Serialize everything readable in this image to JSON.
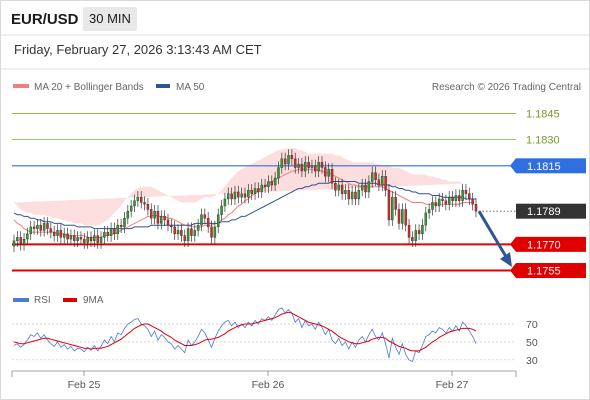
{
  "header": {
    "pair": "EUR/USD",
    "timeframe": "30 MIN",
    "timestamp": "Friday, February 27, 2026 3:13:43 AM CET"
  },
  "legend": {
    "ma20_label": "MA 20 + Bollinger Bands",
    "ma50_label": "MA 50",
    "credit": "Research © 2026 Trading Central"
  },
  "rsi_legend": {
    "rsi_label": "RSI",
    "ma9_label": "9MA"
  },
  "colors": {
    "ma20": "#f08080",
    "ma50": "#2f5597",
    "band": "#fcdede",
    "up": "#2e9d2e",
    "down": "#d42b2b",
    "resistance": "#2f6fe0",
    "support": "#e00000",
    "target": "#7db030",
    "current": "#333333",
    "rsi": "#4f78d8",
    "rsi_ma": "#e00000"
  },
  "chart_data": [
    {
      "type": "candlestick",
      "title": "EUR/USD",
      "ylim": [
        1.1749,
        1.1855
      ],
      "x_ticks": [
        "Feb 25",
        "Feb 26",
        "Feb 27"
      ],
      "levels": [
        {
          "label": "1.1845",
          "value": 1.1845,
          "kind": "target"
        },
        {
          "label": "1.1830",
          "value": 1.183,
          "kind": "target"
        },
        {
          "label": "1.1815",
          "value": 1.1815,
          "kind": "resistance"
        },
        {
          "label": "1.1789",
          "value": 1.1789,
          "kind": "current"
        },
        {
          "label": "1.1770",
          "value": 1.177,
          "kind": "support"
        },
        {
          "label": "1.1755",
          "value": 1.1755,
          "kind": "support"
        }
      ],
      "forecast_arrow": {
        "from": 1.1789,
        "to": 1.1757,
        "direction": "down"
      },
      "closes": [
        1.1772,
        1.1774,
        1.177,
        1.1773,
        1.1776,
        1.178,
        1.1779,
        1.1781,
        1.1778,
        1.1782,
        1.1779,
        1.1777,
        1.1775,
        1.1778,
        1.1774,
        1.1776,
        1.1773,
        1.1775,
        1.1772,
        1.1774,
        1.1773,
        1.1771,
        1.1774,
        1.1772,
        1.1775,
        1.1771,
        1.1774,
        1.1777,
        1.1775,
        1.1779,
        1.1776,
        1.1781,
        1.178,
        1.1785,
        1.1789,
        1.1792,
        1.1795,
        1.1797,
        1.1794,
        1.1793,
        1.179,
        1.1785,
        1.1789,
        1.1782,
        1.1786,
        1.1784,
        1.1781,
        1.178,
        1.1776,
        1.1778,
        1.1775,
        1.1772,
        1.1779,
        1.1775,
        1.1778,
        1.1781,
        1.1787,
        1.1785,
        1.178,
        1.1774,
        1.178,
        1.1787,
        1.1792,
        1.1796,
        1.1799,
        1.1796,
        1.18,
        1.1797,
        1.1799,
        1.1797,
        1.1801,
        1.1799,
        1.1802,
        1.18,
        1.1804,
        1.1803,
        1.1806,
        1.1804,
        1.1808,
        1.1814,
        1.1819,
        1.1816,
        1.1821,
        1.1819,
        1.1814,
        1.1816,
        1.1812,
        1.1817,
        1.1814,
        1.1815,
        1.1812,
        1.1817,
        1.1814,
        1.1809,
        1.1813,
        1.1805,
        1.1801,
        1.1804,
        1.1799,
        1.1801,
        1.1796,
        1.18,
        1.1796,
        1.1801,
        1.1804,
        1.18,
        1.1806,
        1.1811,
        1.1807,
        1.1804,
        1.1809,
        1.1801,
        1.1784,
        1.1797,
        1.179,
        1.1782,
        1.179,
        1.1781,
        1.1774,
        1.1772,
        1.1778,
        1.1776,
        1.1781,
        1.1788,
        1.179,
        1.1794,
        1.1792,
        1.1796,
        1.1795,
        1.1793,
        1.1797,
        1.1795,
        1.1798,
        1.1795,
        1.1801,
        1.1799,
        1.1796,
        1.1793,
        1.1789
      ],
      "ma20": [
        1.1784,
        1.1782,
        1.1781,
        1.1779,
        1.1778,
        1.1777,
        1.1777,
        1.1777,
        1.1777,
        1.1777,
        1.1777,
        1.1777,
        1.1777,
        1.1776,
        1.1776,
        1.1776,
        1.1775,
        1.1775,
        1.1775,
        1.1775,
        1.1775,
        1.1775,
        1.1774,
        1.1774,
        1.1774,
        1.1774,
        1.1774,
        1.1775,
        1.1775,
        1.1776,
        1.1776,
        1.1777,
        1.1778,
        1.1779,
        1.178,
        1.1781,
        1.1782,
        1.1783,
        1.1784,
        1.1785,
        1.1786,
        1.1786,
        1.1787,
        1.1786,
        1.1786,
        1.1786,
        1.1785,
        1.1785,
        1.1784,
        1.1783,
        1.1782,
        1.1781,
        1.1781,
        1.178,
        1.178,
        1.178,
        1.178,
        1.1781,
        1.1781,
        1.1781,
        1.1782,
        1.1782,
        1.1784,
        1.1785,
        1.1787,
        1.1788,
        1.179,
        1.1792,
        1.1793,
        1.1795,
        1.1796,
        1.1798,
        1.1799,
        1.1801,
        1.1802,
        1.1803,
        1.1805,
        1.1806,
        1.1807,
        1.1808,
        1.1809,
        1.181,
        1.1811,
        1.1812,
        1.1812,
        1.1813,
        1.1813,
        1.1813,
        1.1813,
        1.1813,
        1.1813,
        1.1812,
        1.1812,
        1.1811,
        1.1811,
        1.181,
        1.1809,
        1.1808,
        1.1807,
        1.1806,
        1.1805,
        1.1804,
        1.1804,
        1.1803,
        1.1803,
        1.1803,
        1.1803,
        1.1803,
        1.1803,
        1.1803,
        1.1803,
        1.1802,
        1.1801,
        1.18,
        1.1799,
        1.1798,
        1.1797,
        1.1796,
        1.1795,
        1.1794,
        1.1794,
        1.1794,
        1.1794,
        1.1793,
        1.1793,
        1.1793,
        1.1793,
        1.1793,
        1.1793,
        1.1793,
        1.1793,
        1.1793,
        1.1793,
        1.1793,
        1.1794,
        1.1794,
        1.1794,
        1.1794
      ],
      "bb_upper": [
        1.1794,
        1.1792,
        1.179,
        1.1789,
        1.1788,
        1.1788,
        1.1787,
        1.1787,
        1.1787,
        1.1787,
        1.1786,
        1.1786,
        1.1785,
        1.1785,
        1.1784,
        1.1784,
        1.1783,
        1.1783,
        1.1782,
        1.1782,
        1.1782,
        1.1781,
        1.1781,
        1.1781,
        1.1781,
        1.1781,
        1.1782,
        1.1783,
        1.1784,
        1.1786,
        1.1788,
        1.179,
        1.1792,
        1.1795,
        1.1797,
        1.1799,
        1.1801,
        1.1802,
        1.1803,
        1.1803,
        1.1803,
        1.1803,
        1.1802,
        1.1801,
        1.18,
        1.1799,
        1.1798,
        1.1797,
        1.1796,
        1.1795,
        1.1794,
        1.1794,
        1.1794,
        1.1794,
        1.1794,
        1.1795,
        1.1796,
        1.1797,
        1.1797,
        1.1797,
        1.1798,
        1.1799,
        1.1801,
        1.1803,
        1.1806,
        1.1808,
        1.181,
        1.1812,
        1.1813,
        1.1814,
        1.1815,
        1.1816,
        1.1817,
        1.1818,
        1.1819,
        1.182,
        1.1821,
        1.1822,
        1.1823,
        1.1824,
        1.1824,
        1.1825,
        1.1825,
        1.1825,
        1.1825,
        1.1824,
        1.1824,
        1.1823,
        1.1822,
        1.1822,
        1.1822,
        1.1822,
        1.1822,
        1.1822,
        1.1822,
        1.1822,
        1.1821,
        1.1821,
        1.182,
        1.1819,
        1.1818,
        1.1817,
        1.1817,
        1.1817,
        1.1817,
        1.1817,
        1.1817,
        1.1817,
        1.1816,
        1.1816,
        1.1815,
        1.1815,
        1.1815,
        1.1814,
        1.1814,
        1.1814,
        1.1813,
        1.1812,
        1.1811,
        1.181,
        1.181,
        1.181,
        1.181,
        1.181,
        1.1809,
        1.1809,
        1.1808,
        1.1808,
        1.1807,
        1.1807,
        1.1806,
        1.1806,
        1.1806,
        1.1806,
        1.1805,
        1.1805,
        1.1805
      ],
      "bb_lower": [
        1.1774,
        1.1772,
        1.1771,
        1.177,
        1.1769,
        1.1768,
        1.1768,
        1.1768,
        1.1768,
        1.1768,
        1.1768,
        1.1768,
        1.1768,
        1.1767,
        1.1767,
        1.1767,
        1.1767,
        1.1767,
        1.1767,
        1.1767,
        1.1767,
        1.1767,
        1.1767,
        1.1767,
        1.1767,
        1.1767,
        1.1767,
        1.1767,
        1.1767,
        1.1766,
        1.1766,
        1.1766,
        1.1766,
        1.1766,
        1.1766,
        1.1766,
        1.1766,
        1.1766,
        1.1767,
        1.1767,
        1.1768,
        1.1769,
        1.177,
        1.1771,
        1.1772,
        1.1772,
        1.1772,
        1.1772,
        1.1772,
        1.1771,
        1.177,
        1.1769,
        1.1768,
        1.1767,
        1.1766,
        1.1766,
        1.1766,
        1.1766,
        1.1766,
        1.1767,
        1.1767,
        1.1768,
        1.1769,
        1.177,
        1.1772,
        1.1773,
        1.1775,
        1.1777,
        1.1779,
        1.1781,
        1.1783,
        1.1785,
        1.1787,
        1.1789,
        1.1791,
        1.1793,
        1.1795,
        1.1796,
        1.1797,
        1.1798,
        1.1799,
        1.18,
        1.18,
        1.1801,
        1.1801,
        1.1801,
        1.1801,
        1.1801,
        1.18,
        1.18,
        1.1799,
        1.1798,
        1.1797,
        1.1796,
        1.1795,
        1.1794,
        1.1793,
        1.1792,
        1.1791,
        1.1791,
        1.179,
        1.179,
        1.179,
        1.179,
        1.179,
        1.179,
        1.179,
        1.179,
        1.1789,
        1.1788,
        1.1787,
        1.1786,
        1.1784,
        1.1782,
        1.178,
        1.1778,
        1.1776,
        1.1774,
        1.1773,
        1.1772,
        1.1772,
        1.1772,
        1.1772,
        1.1773,
        1.1773,
        1.1774,
        1.1775,
        1.1776,
        1.1777,
        1.1778,
        1.1779,
        1.1779,
        1.178,
        1.178,
        1.178,
        1.178,
        1.1781,
        1.1781
      ],
      "ma50": [
        1.1788,
        1.1787,
        1.1787,
        1.1786,
        1.1786,
        1.1785,
        1.1785,
        1.1784,
        1.1784,
        1.1783,
        1.1783,
        1.1783,
        1.1782,
        1.1782,
        1.1782,
        1.1781,
        1.1781,
        1.1781,
        1.1781,
        1.178,
        1.178,
        1.178,
        1.178,
        1.178,
        1.1779,
        1.1779,
        1.1779,
        1.1779,
        1.1779,
        1.1779,
        1.1779,
        1.1779,
        1.1779,
        1.1779,
        1.1779,
        1.1779,
        1.178,
        1.178,
        1.178,
        1.178,
        1.178,
        1.1781,
        1.1781,
        1.1781,
        1.1781,
        1.1781,
        1.1781,
        1.1781,
        1.1781,
        1.1781,
        1.1781,
        1.1781,
        1.1781,
        1.1781,
        1.1782,
        1.1782,
        1.1782,
        1.1782,
        1.1782,
        1.1782,
        1.1782,
        1.1782,
        1.1783,
        1.1783,
        1.1783,
        1.1784,
        1.1784,
        1.1785,
        1.1786,
        1.1786,
        1.1787,
        1.1788,
        1.1789,
        1.179,
        1.1791,
        1.1792,
        1.1793,
        1.1794,
        1.1795,
        1.1796,
        1.1797,
        1.1798,
        1.1799,
        1.18,
        1.1801,
        1.1802,
        1.1802,
        1.1803,
        1.1803,
        1.1804,
        1.1804,
        1.1805,
        1.1805,
        1.1805,
        1.1805,
        1.1806,
        1.1806,
        1.1806,
        1.1806,
        1.1806,
        1.1806,
        1.1806,
        1.1806,
        1.1805,
        1.1805,
        1.1805,
        1.1805,
        1.1805,
        1.1805,
        1.1804,
        1.1804,
        1.1804,
        1.1804,
        1.1803,
        1.1803,
        1.1802,
        1.1802,
        1.1801,
        1.1801,
        1.18,
        1.18,
        1.1799,
        1.1799,
        1.1799,
        1.1799,
        1.1798,
        1.1798,
        1.1798,
        1.1797,
        1.1797,
        1.1797,
        1.1797,
        1.1797,
        1.1797,
        1.1797,
        1.1796,
        1.1796,
        1.1796,
        1.1796
      ]
    },
    {
      "type": "line",
      "title": "RSI",
      "ylim": [
        22,
        80
      ],
      "y_ticks": [
        70,
        50,
        30
      ],
      "series": [
        {
          "name": "RSI",
          "values": [
            46,
            48,
            44,
            47,
            52,
            58,
            56,
            60,
            54,
            58,
            52,
            48,
            45,
            50,
            44,
            47,
            42,
            45,
            40,
            43,
            42,
            39,
            44,
            41,
            46,
            40,
            45,
            52,
            48,
            56,
            50,
            60,
            58,
            65,
            70,
            72,
            75,
            76,
            70,
            68,
            64,
            56,
            62,
            52,
            58,
            55,
            50,
            48,
            42,
            46,
            42,
            38,
            52,
            46,
            50,
            56,
            64,
            60,
            52,
            44,
            54,
            62,
            68,
            72,
            74,
            68,
            72,
            66,
            70,
            66,
            72,
            68,
            74,
            70,
            76,
            74,
            78,
            74,
            80,
            86,
            88,
            82,
            86,
            82,
            72,
            76,
            66,
            74,
            68,
            70,
            64,
            72,
            66,
            58,
            64,
            52,
            48,
            54,
            46,
            50,
            42,
            50,
            44,
            52,
            56,
            50,
            58,
            64,
            56,
            52,
            60,
            48,
            32,
            54,
            44,
            36,
            48,
            36,
            30,
            28,
            40,
            38,
            46,
            56,
            58,
            62,
            60,
            66,
            64,
            60,
            66,
            62,
            68,
            62,
            72,
            68,
            62,
            56,
            48
          ]
        },
        {
          "name": "9MA",
          "values": [
            50,
            49,
            48,
            48,
            49,
            50,
            51,
            52,
            53,
            54,
            54,
            53,
            52,
            51,
            50,
            49,
            48,
            47,
            46,
            45,
            44,
            43,
            43,
            42,
            43,
            43,
            43,
            44,
            45,
            47,
            49,
            51,
            53,
            56,
            59,
            62,
            65,
            67,
            69,
            70,
            70,
            68,
            66,
            64,
            62,
            59,
            57,
            55,
            52,
            50,
            48,
            46,
            46,
            46,
            47,
            48,
            50,
            52,
            53,
            53,
            54,
            55,
            57,
            59,
            62,
            64,
            66,
            68,
            69,
            70,
            70,
            70,
            71,
            72,
            73,
            74,
            75,
            76,
            77,
            79,
            81,
            82,
            83,
            82,
            80,
            78,
            76,
            74,
            72,
            71,
            70,
            69,
            68,
            66,
            64,
            62,
            59,
            56,
            54,
            52,
            50,
            49,
            48,
            48,
            49,
            50,
            51,
            53,
            54,
            55,
            55,
            54,
            51,
            49,
            47,
            45,
            44,
            43,
            41,
            40,
            40,
            40,
            42,
            44,
            47,
            50,
            52,
            55,
            57,
            59,
            61,
            62,
            63,
            64,
            65,
            65,
            65,
            64,
            62
          ]
        }
      ]
    }
  ]
}
